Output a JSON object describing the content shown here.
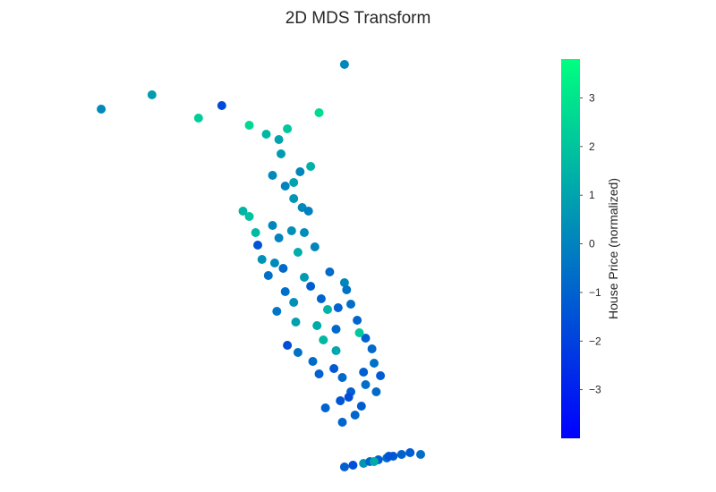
{
  "chart_data": {
    "type": "scatter",
    "title": "2D MDS Transform",
    "xlabel": "",
    "ylabel": "",
    "axes_visible": false,
    "grid": false,
    "xlim": [
      -11,
      11
    ],
    "ylim": [
      -11,
      11
    ],
    "colorbar": {
      "label": "House Price (normalized)",
      "range": [
        -4.0,
        3.8
      ],
      "ticks": [
        3,
        2,
        1,
        0,
        -1,
        -2,
        -3
      ],
      "tick_labels": [
        "3",
        "2",
        "1",
        "0",
        "−1",
        "−2",
        "−3"
      ],
      "colormap": "winter",
      "color_low": "#0000ff",
      "color_high": "#00ff80"
    },
    "points": [
      [
        -9.6,
        7.9,
        0.2
      ],
      [
        -7.2,
        8.7,
        0.8
      ],
      [
        -5.0,
        7.4,
        2.3
      ],
      [
        -3.9,
        8.1,
        -1.7
      ],
      [
        -2.6,
        7.0,
        2.6
      ],
      [
        1.9,
        10.4,
        0.1
      ],
      [
        0.7,
        7.7,
        2.7
      ],
      [
        -0.8,
        6.8,
        2.1
      ],
      [
        -1.8,
        6.5,
        1.6
      ],
      [
        -1.2,
        6.2,
        1.0
      ],
      [
        -1.1,
        5.4,
        0.8
      ],
      [
        -0.2,
        4.4,
        0.1
      ],
      [
        0.3,
        4.7,
        1.4
      ],
      [
        -1.5,
        4.2,
        0.2
      ],
      [
        -0.9,
        3.6,
        0.0
      ],
      [
        -0.5,
        3.8,
        1.0
      ],
      [
        -2.9,
        2.2,
        1.5
      ],
      [
        -2.6,
        1.9,
        1.9
      ],
      [
        -2.3,
        1.0,
        1.7
      ],
      [
        -2.2,
        0.3,
        -1.5
      ],
      [
        -1.5,
        1.4,
        0.1
      ],
      [
        -1.2,
        0.7,
        0.0
      ],
      [
        -0.6,
        1.1,
        0.4
      ],
      [
        -0.5,
        2.9,
        0.6
      ],
      [
        -0.1,
        2.4,
        0.2
      ],
      [
        0.2,
        2.2,
        -0.1
      ],
      [
        -2.0,
        -0.5,
        0.5
      ],
      [
        -1.4,
        -0.7,
        0.2
      ],
      [
        -1.7,
        -1.4,
        -0.6
      ],
      [
        -1.0,
        -1.0,
        -0.8
      ],
      [
        -0.9,
        -2.3,
        -0.6
      ],
      [
        -1.3,
        -3.4,
        -0.4
      ],
      [
        0.3,
        -2.0,
        -1.2
      ],
      [
        0.8,
        -2.7,
        -1.0
      ],
      [
        1.2,
        -1.2,
        -0.7
      ],
      [
        1.9,
        -1.8,
        0.1
      ],
      [
        2.0,
        -2.2,
        -0.5
      ],
      [
        2.5,
        -3.9,
        -0.9
      ],
      [
        2.9,
        -4.9,
        -1.0
      ],
      [
        3.2,
        -5.5,
        -0.8
      ],
      [
        3.3,
        -6.3,
        -0.5
      ],
      [
        3.6,
        -7.0,
        -1.2
      ],
      [
        2.9,
        -7.5,
        -0.6
      ],
      [
        2.2,
        -7.9,
        -1.1
      ],
      [
        1.7,
        -8.4,
        -1.4
      ],
      [
        2.4,
        -9.2,
        -0.9
      ],
      [
        1.1,
        -3.3,
        1.5
      ],
      [
        0.6,
        -4.2,
        1.2
      ],
      [
        0.9,
        -5.0,
        1.6
      ],
      [
        1.5,
        -5.6,
        1.1
      ],
      [
        2.6,
        -4.6,
        2.1
      ],
      [
        -0.4,
        -4.0,
        0.9
      ],
      [
        -0.8,
        -5.3,
        -1.6
      ],
      [
        -0.3,
        -5.7,
        -0.5
      ],
      [
        0.4,
        -6.2,
        -0.7
      ],
      [
        0.7,
        -6.9,
        -1.0
      ],
      [
        1.4,
        -6.6,
        -1.3
      ],
      [
        1.8,
        -7.1,
        -0.8
      ],
      [
        2.8,
        -6.8,
        -1.1
      ],
      [
        3.4,
        -7.9,
        -0.7
      ],
      [
        1.0,
        -8.8,
        -1.0
      ],
      [
        2.1,
        -8.2,
        -1.6
      ],
      [
        2.7,
        -8.7,
        -1.2
      ],
      [
        1.8,
        -9.6,
        -0.9
      ],
      [
        0.0,
        1.0,
        0.3
      ],
      [
        0.5,
        0.2,
        0.1
      ],
      [
        -0.3,
        -0.1,
        1.3
      ],
      [
        0.0,
        -1.5,
        0.7
      ],
      [
        -0.5,
        -2.9,
        0.4
      ],
      [
        1.6,
        -3.2,
        -1.0
      ],
      [
        2.2,
        -3.0,
        -0.6
      ],
      [
        1.5,
        -4.4,
        -0.8
      ],
      [
        1.9,
        -12.1,
        -1.1
      ],
      [
        2.3,
        -12.0,
        -1.6
      ],
      [
        2.8,
        -11.9,
        0.6
      ],
      [
        3.1,
        -11.8,
        -0.9
      ],
      [
        3.5,
        -11.7,
        -1.2
      ],
      [
        3.9,
        -11.6,
        -0.7
      ],
      [
        4.2,
        -11.5,
        -1.3
      ],
      [
        4.6,
        -11.4,
        -1.0
      ],
      [
        5.0,
        -11.3,
        -1.2
      ],
      [
        5.5,
        -11.4,
        -0.6
      ],
      [
        3.3,
        -11.8,
        1.2
      ],
      [
        4.0,
        -11.5,
        -1.5
      ]
    ]
  }
}
